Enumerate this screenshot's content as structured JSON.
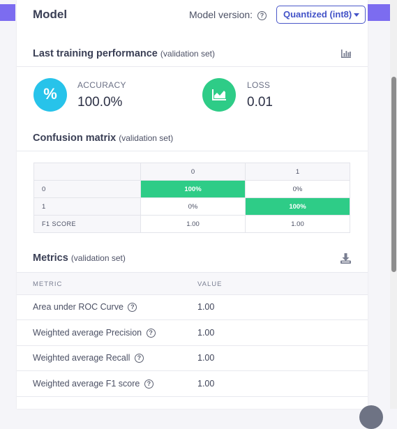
{
  "model": {
    "title": "Model",
    "version_label": "Model version:",
    "version_selected": "Quantized (int8)"
  },
  "training": {
    "title": "Last training performance",
    "subtitle": "(validation set)",
    "accuracy": {
      "icon": "%",
      "label": "ACCURACY",
      "value": "100.0%"
    },
    "loss": {
      "label": "LOSS",
      "value": "0.01"
    }
  },
  "confusion": {
    "title": "Confusion matrix",
    "subtitle": "(validation set)",
    "col_headers": [
      "0",
      "1"
    ],
    "rows": [
      {
        "label": "0",
        "cells": [
          "100%",
          "0%"
        ]
      },
      {
        "label": "1",
        "cells": [
          "0%",
          "100%"
        ]
      }
    ],
    "f1_label": "F1 SCORE",
    "f1_values": [
      "1.00",
      "1.00"
    ]
  },
  "metrics": {
    "title": "Metrics",
    "subtitle": "(validation set)",
    "col_metric": "METRIC",
    "col_value": "VALUE",
    "rows": [
      {
        "name": "Area under ROC Curve",
        "value": "1.00"
      },
      {
        "name": "Weighted average Precision",
        "value": "1.00"
      },
      {
        "name": "Weighted average Recall",
        "value": "1.00"
      },
      {
        "name": "Weighted average F1 score",
        "value": "1.00"
      }
    ]
  },
  "colors": {
    "accuracy_circle": "#27c3ea",
    "loss_circle": "#2ecc87",
    "matrix_hit": "#2ecc87",
    "accent": "#4353c8"
  }
}
